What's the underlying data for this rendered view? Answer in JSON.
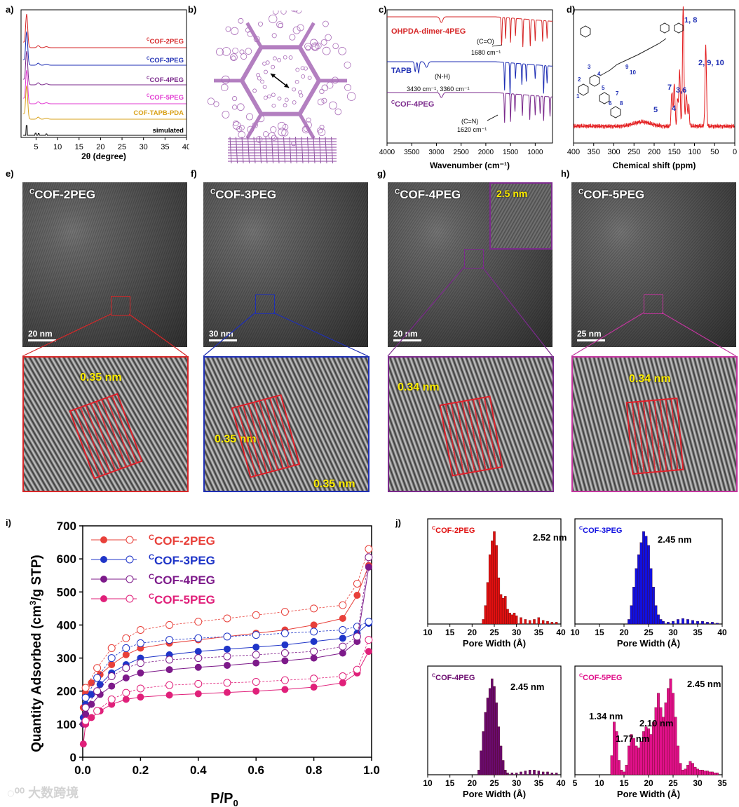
{
  "panel_labels": {
    "a": "a)",
    "b": "b)",
    "c": "c)",
    "d": "d)",
    "e": "e)",
    "f": "f)",
    "g": "g)",
    "h": "h)",
    "i": "i)",
    "j": "j)"
  },
  "panel_a": {
    "xlabel": "2θ (degree)",
    "xticks": [
      "5",
      "10",
      "15",
      "20",
      "25",
      "30",
      "35",
      "40"
    ],
    "traces": [
      {
        "sup": "C",
        "name": "COF-2PEG",
        "color": "#d62728"
      },
      {
        "sup": "C",
        "name": "COF-3PEG",
        "color": "#1f2fb4"
      },
      {
        "sup": "C",
        "name": "COF-4PEG",
        "color": "#7b2a8c"
      },
      {
        "sup": "C",
        "name": "COF-5PEG",
        "color": "#e23bd2"
      },
      {
        "sup": "",
        "name": "COF-TAPB-PDA",
        "color": "#d9a21b"
      },
      {
        "sup": "",
        "name": "simulated",
        "color": "#000000"
      }
    ]
  },
  "panel_c": {
    "xlabel": "Wavenumber (cm⁻¹)",
    "xticks": [
      "4000",
      "3500",
      "3000",
      "2500",
      "2000",
      "1500",
      "1000"
    ],
    "traces": [
      {
        "name": "OHPDA-dimer-4PEG",
        "color": "#d62728"
      },
      {
        "name": "TAPB",
        "color": "#1f2fb4"
      },
      {
        "sup": "C",
        "name": "COF-4PEG",
        "color": "#7b2a8c"
      }
    ],
    "annotations": [
      {
        "l1": "(C=O)",
        "l2": "1680 cm⁻¹"
      },
      {
        "l1": "(N-H)",
        "l2": "3430 cm⁻¹, 3360 cm⁻¹"
      },
      {
        "l1": "(C=N)",
        "l2": "1620 cm⁻¹"
      }
    ]
  },
  "panel_d": {
    "xlabel": "Chemical shift (ppm)",
    "xticks": [
      "400",
      "350",
      "300",
      "250",
      "200",
      "150",
      "100",
      "50",
      "0"
    ],
    "peaks": [
      "1, 8",
      "2, 9, 10",
      "3,6",
      "7",
      "5",
      "4"
    ],
    "struct_nums": [
      "1",
      "2",
      "3",
      "4",
      "5",
      "6",
      "7",
      "8",
      "9",
      "10"
    ]
  },
  "tem": [
    {
      "sup": "C",
      "title": "COF-2PEG",
      "scale": "20 nm",
      "color": "#d62728",
      "spacings": [
        "0.35 nm"
      ]
    },
    {
      "sup": "C",
      "title": "COF-3PEG",
      "scale": "30 nm",
      "color": "#1f2fb4",
      "spacings": [
        "0.35 nm",
        "0.35 nm"
      ]
    },
    {
      "sup": "C",
      "title": "COF-4PEG",
      "scale": "20 nm",
      "color": "#7b2a8c",
      "spacings": [
        "0.34 nm"
      ],
      "inset": "2.5 nm"
    },
    {
      "sup": "C",
      "title": "COF-5PEG",
      "scale": "25 nm",
      "color": "#c2359e",
      "spacings": [
        "0.34 nm"
      ]
    }
  ],
  "chart_data": [
    {
      "type": "scatter",
      "panel": "i",
      "xlabel": "P/P0",
      "ylabel": "Quantity Adsorbed (cm3/g STP)",
      "xlim": [
        0,
        1.0
      ],
      "ylim": [
        0,
        700
      ],
      "xticks": [
        "0.0",
        "0.2",
        "0.4",
        "0.6",
        "0.8",
        "1.0"
      ],
      "yticks": [
        "0",
        "100",
        "200",
        "300",
        "400",
        "500",
        "600",
        "700"
      ],
      "legend_position": "top-left",
      "series": [
        {
          "name": "COF-2PEG",
          "sup": "C",
          "color": "#e8403a",
          "adsorption": [
            [
              0.002,
              150
            ],
            [
              0.01,
              195
            ],
            [
              0.03,
              225
            ],
            [
              0.06,
              250
            ],
            [
              0.1,
              280
            ],
            [
              0.15,
              310
            ],
            [
              0.2,
              330
            ],
            [
              0.3,
              345
            ],
            [
              0.4,
              355
            ],
            [
              0.5,
              365
            ],
            [
              0.6,
              375
            ],
            [
              0.7,
              385
            ],
            [
              0.8,
              400
            ],
            [
              0.9,
              420
            ],
            [
              0.95,
              490
            ],
            [
              0.99,
              580
            ]
          ],
          "desorption": [
            [
              0.99,
              630
            ],
            [
              0.95,
              525
            ],
            [
              0.9,
              460
            ],
            [
              0.8,
              450
            ],
            [
              0.7,
              440
            ],
            [
              0.6,
              430
            ],
            [
              0.5,
              420
            ],
            [
              0.4,
              410
            ],
            [
              0.3,
              400
            ],
            [
              0.2,
              385
            ],
            [
              0.15,
              360
            ],
            [
              0.1,
              330
            ],
            [
              0.05,
              270
            ],
            [
              0.01,
              210
            ]
          ]
        },
        {
          "name": "COF-3PEG",
          "sup": "C",
          "color": "#1f35c8",
          "adsorption": [
            [
              0.002,
              120
            ],
            [
              0.01,
              160
            ],
            [
              0.03,
              190
            ],
            [
              0.06,
              220
            ],
            [
              0.1,
              255
            ],
            [
              0.15,
              280
            ],
            [
              0.2,
              300
            ],
            [
              0.3,
              310
            ],
            [
              0.4,
              320
            ],
            [
              0.5,
              327
            ],
            [
              0.6,
              333
            ],
            [
              0.7,
              340
            ],
            [
              0.8,
              350
            ],
            [
              0.9,
              360
            ],
            [
              0.95,
              375
            ],
            [
              0.99,
              405
            ]
          ],
          "desorption": [
            [
              0.99,
              410
            ],
            [
              0.95,
              395
            ],
            [
              0.9,
              385
            ],
            [
              0.8,
              380
            ],
            [
              0.7,
              375
            ],
            [
              0.6,
              370
            ],
            [
              0.5,
              365
            ],
            [
              0.4,
              360
            ],
            [
              0.3,
              355
            ],
            [
              0.2,
              345
            ],
            [
              0.15,
              330
            ],
            [
              0.1,
              300
            ],
            [
              0.05,
              240
            ],
            [
              0.01,
              180
            ]
          ]
        },
        {
          "name": "COF-4PEG",
          "sup": "C",
          "color": "#7d1a8a",
          "adsorption": [
            [
              0.002,
              100
            ],
            [
              0.01,
              130
            ],
            [
              0.03,
              160
            ],
            [
              0.06,
              190
            ],
            [
              0.1,
              215
            ],
            [
              0.15,
              240
            ],
            [
              0.2,
              255
            ],
            [
              0.3,
              265
            ],
            [
              0.4,
              272
            ],
            [
              0.5,
              278
            ],
            [
              0.6,
              285
            ],
            [
              0.7,
              292
            ],
            [
              0.8,
              300
            ],
            [
              0.9,
              315
            ],
            [
              0.95,
              350
            ],
            [
              0.99,
              575
            ]
          ],
          "desorption": [
            [
              0.99,
              605
            ],
            [
              0.95,
              365
            ],
            [
              0.9,
              335
            ],
            [
              0.8,
              320
            ],
            [
              0.7,
              315
            ],
            [
              0.6,
              310
            ],
            [
              0.5,
              305
            ],
            [
              0.4,
              300
            ],
            [
              0.3,
              295
            ],
            [
              0.2,
              285
            ],
            [
              0.15,
              270
            ],
            [
              0.1,
              245
            ],
            [
              0.05,
              200
            ],
            [
              0.01,
              150
            ]
          ]
        },
        {
          "name": "COF-5PEG",
          "sup": "C",
          "color": "#e0207a",
          "adsorption": [
            [
              0.002,
              40
            ],
            [
              0.01,
              100
            ],
            [
              0.03,
              120
            ],
            [
              0.06,
              140
            ],
            [
              0.1,
              160
            ],
            [
              0.15,
              175
            ],
            [
              0.2,
              182
            ],
            [
              0.3,
              188
            ],
            [
              0.4,
              192
            ],
            [
              0.5,
              196
            ],
            [
              0.6,
              200
            ],
            [
              0.7,
              205
            ],
            [
              0.8,
              212
            ],
            [
              0.9,
              225
            ],
            [
              0.95,
              255
            ],
            [
              0.99,
              320
            ]
          ],
          "desorption": [
            [
              0.99,
              355
            ],
            [
              0.95,
              265
            ],
            [
              0.9,
              245
            ],
            [
              0.8,
              238
            ],
            [
              0.7,
              233
            ],
            [
              0.6,
              228
            ],
            [
              0.5,
              225
            ],
            [
              0.4,
              222
            ],
            [
              0.3,
              218
            ],
            [
              0.2,
              208
            ],
            [
              0.15,
              195
            ],
            [
              0.1,
              175
            ],
            [
              0.05,
              140
            ],
            [
              0.01,
              110
            ]
          ]
        }
      ]
    },
    {
      "type": "bar",
      "panel": "j",
      "subplot": "CCOF-2PEG",
      "sup": "C",
      "title": "COF-2PEG",
      "color": "#e01010",
      "annotation": "2.52 nm",
      "xlabel": "Pore Width (Å)",
      "xlim": [
        10,
        40
      ],
      "xticks": [
        "10",
        "15",
        "20",
        "25",
        "30",
        "35",
        "40"
      ],
      "x": [
        22.5,
        23.0,
        23.5,
        24.0,
        24.5,
        25.0,
        25.5,
        26.0,
        26.5,
        27.0,
        27.5,
        28.0,
        28.5,
        29.0,
        29.5,
        30.0,
        31,
        32,
        33,
        34,
        35,
        36,
        37,
        38,
        39
      ],
      "values": [
        0.05,
        0.2,
        0.45,
        0.75,
        0.9,
        1.0,
        0.85,
        0.5,
        0.32,
        0.28,
        0.3,
        0.16,
        0.12,
        0.1,
        0.12,
        0.09,
        0.07,
        0.05,
        0.04,
        0.05,
        0.07,
        0.04,
        0.03,
        0.02,
        0.02
      ]
    },
    {
      "type": "bar",
      "panel": "j",
      "subplot": "CCOF-3PEG",
      "sup": "C",
      "title": "COF-3PEG",
      "color": "#1010e0",
      "annotation": "2.45 nm",
      "xlabel": "Pore Width (Å)",
      "xlim": [
        10,
        40
      ],
      "xticks": [
        "10",
        "15",
        "20",
        "25",
        "30",
        "35",
        "40"
      ],
      "x": [
        21.0,
        21.5,
        22.0,
        22.5,
        23.0,
        23.5,
        24.0,
        24.5,
        25.0,
        25.5,
        26.0,
        26.5,
        27.0,
        27.5,
        28,
        29,
        30,
        31,
        32,
        33,
        34,
        35,
        36,
        37,
        38,
        39
      ],
      "values": [
        0.05,
        0.2,
        0.4,
        0.6,
        0.75,
        0.88,
        1.0,
        0.95,
        0.85,
        0.6,
        0.4,
        0.2,
        0.1,
        0.05,
        0.03,
        0.02,
        0.03,
        0.05,
        0.06,
        0.05,
        0.04,
        0.03,
        0.03,
        0.02,
        0.02,
        0.01
      ]
    },
    {
      "type": "bar",
      "panel": "j",
      "subplot": "CCOF-4PEG",
      "sup": "C",
      "title": "COF-4PEG",
      "color": "#6a0a6e",
      "annotation": "2.45 nm",
      "xlabel": "Pore Width (Å)",
      "xlim": [
        10,
        40
      ],
      "xticks": [
        "10",
        "15",
        "20",
        "25",
        "30",
        "35",
        "40"
      ],
      "x": [
        21.5,
        22.0,
        22.5,
        23.0,
        23.5,
        24.0,
        24.5,
        25.0,
        25.5,
        26.0,
        26.5,
        27.0,
        27.5,
        28,
        29,
        30,
        31,
        32,
        33,
        34,
        35,
        36,
        37,
        38,
        39
      ],
      "values": [
        0.05,
        0.25,
        0.45,
        0.65,
        0.8,
        0.9,
        1.0,
        0.92,
        0.75,
        0.5,
        0.3,
        0.15,
        0.05,
        0.02,
        0.02,
        0.02,
        0.03,
        0.04,
        0.05,
        0.05,
        0.04,
        0.03,
        0.03,
        0.02,
        0.02
      ]
    },
    {
      "type": "bar",
      "panel": "j",
      "subplot": "CCOF-5PEG",
      "sup": "C",
      "title": "COF-5PEG",
      "color": "#e0108a",
      "annotations": [
        "2.45 nm",
        "1.34 nm",
        "2.10 nm",
        "1.77 nm"
      ],
      "xlabel": "Pore Width (Å)",
      "xlim": [
        5,
        35
      ],
      "xticks": [
        "5",
        "10",
        "15",
        "20",
        "25",
        "30",
        "35"
      ],
      "x": [
        12.5,
        13.0,
        13.5,
        14.0,
        14.5,
        15.0,
        15.5,
        16.0,
        16.5,
        17.0,
        17.5,
        18.0,
        18.5,
        19.0,
        19.5,
        20.0,
        20.5,
        21.0,
        21.5,
        22.0,
        22.5,
        23.0,
        23.5,
        24.0,
        24.5,
        25.0,
        25.5,
        26.0,
        26.5,
        27,
        27.5,
        28,
        28.5,
        29,
        29.5,
        30,
        30.5,
        31,
        31.5,
        32,
        32.5,
        33,
        33.5,
        34
      ],
      "values": [
        0.2,
        0.55,
        0.45,
        0.15,
        0.05,
        0.03,
        0.1,
        0.3,
        0.42,
        0.38,
        0.3,
        0.28,
        0.35,
        0.45,
        0.5,
        0.48,
        0.42,
        0.55,
        0.7,
        0.85,
        0.7,
        0.6,
        0.75,
        0.9,
        1.0,
        0.85,
        0.6,
        0.3,
        0.12,
        0.05,
        0.06,
        0.1,
        0.14,
        0.12,
        0.08,
        0.06,
        0.05,
        0.05,
        0.04,
        0.04,
        0.03,
        0.03,
        0.02,
        0.02
      ]
    }
  ],
  "watermark": "大数跨境"
}
